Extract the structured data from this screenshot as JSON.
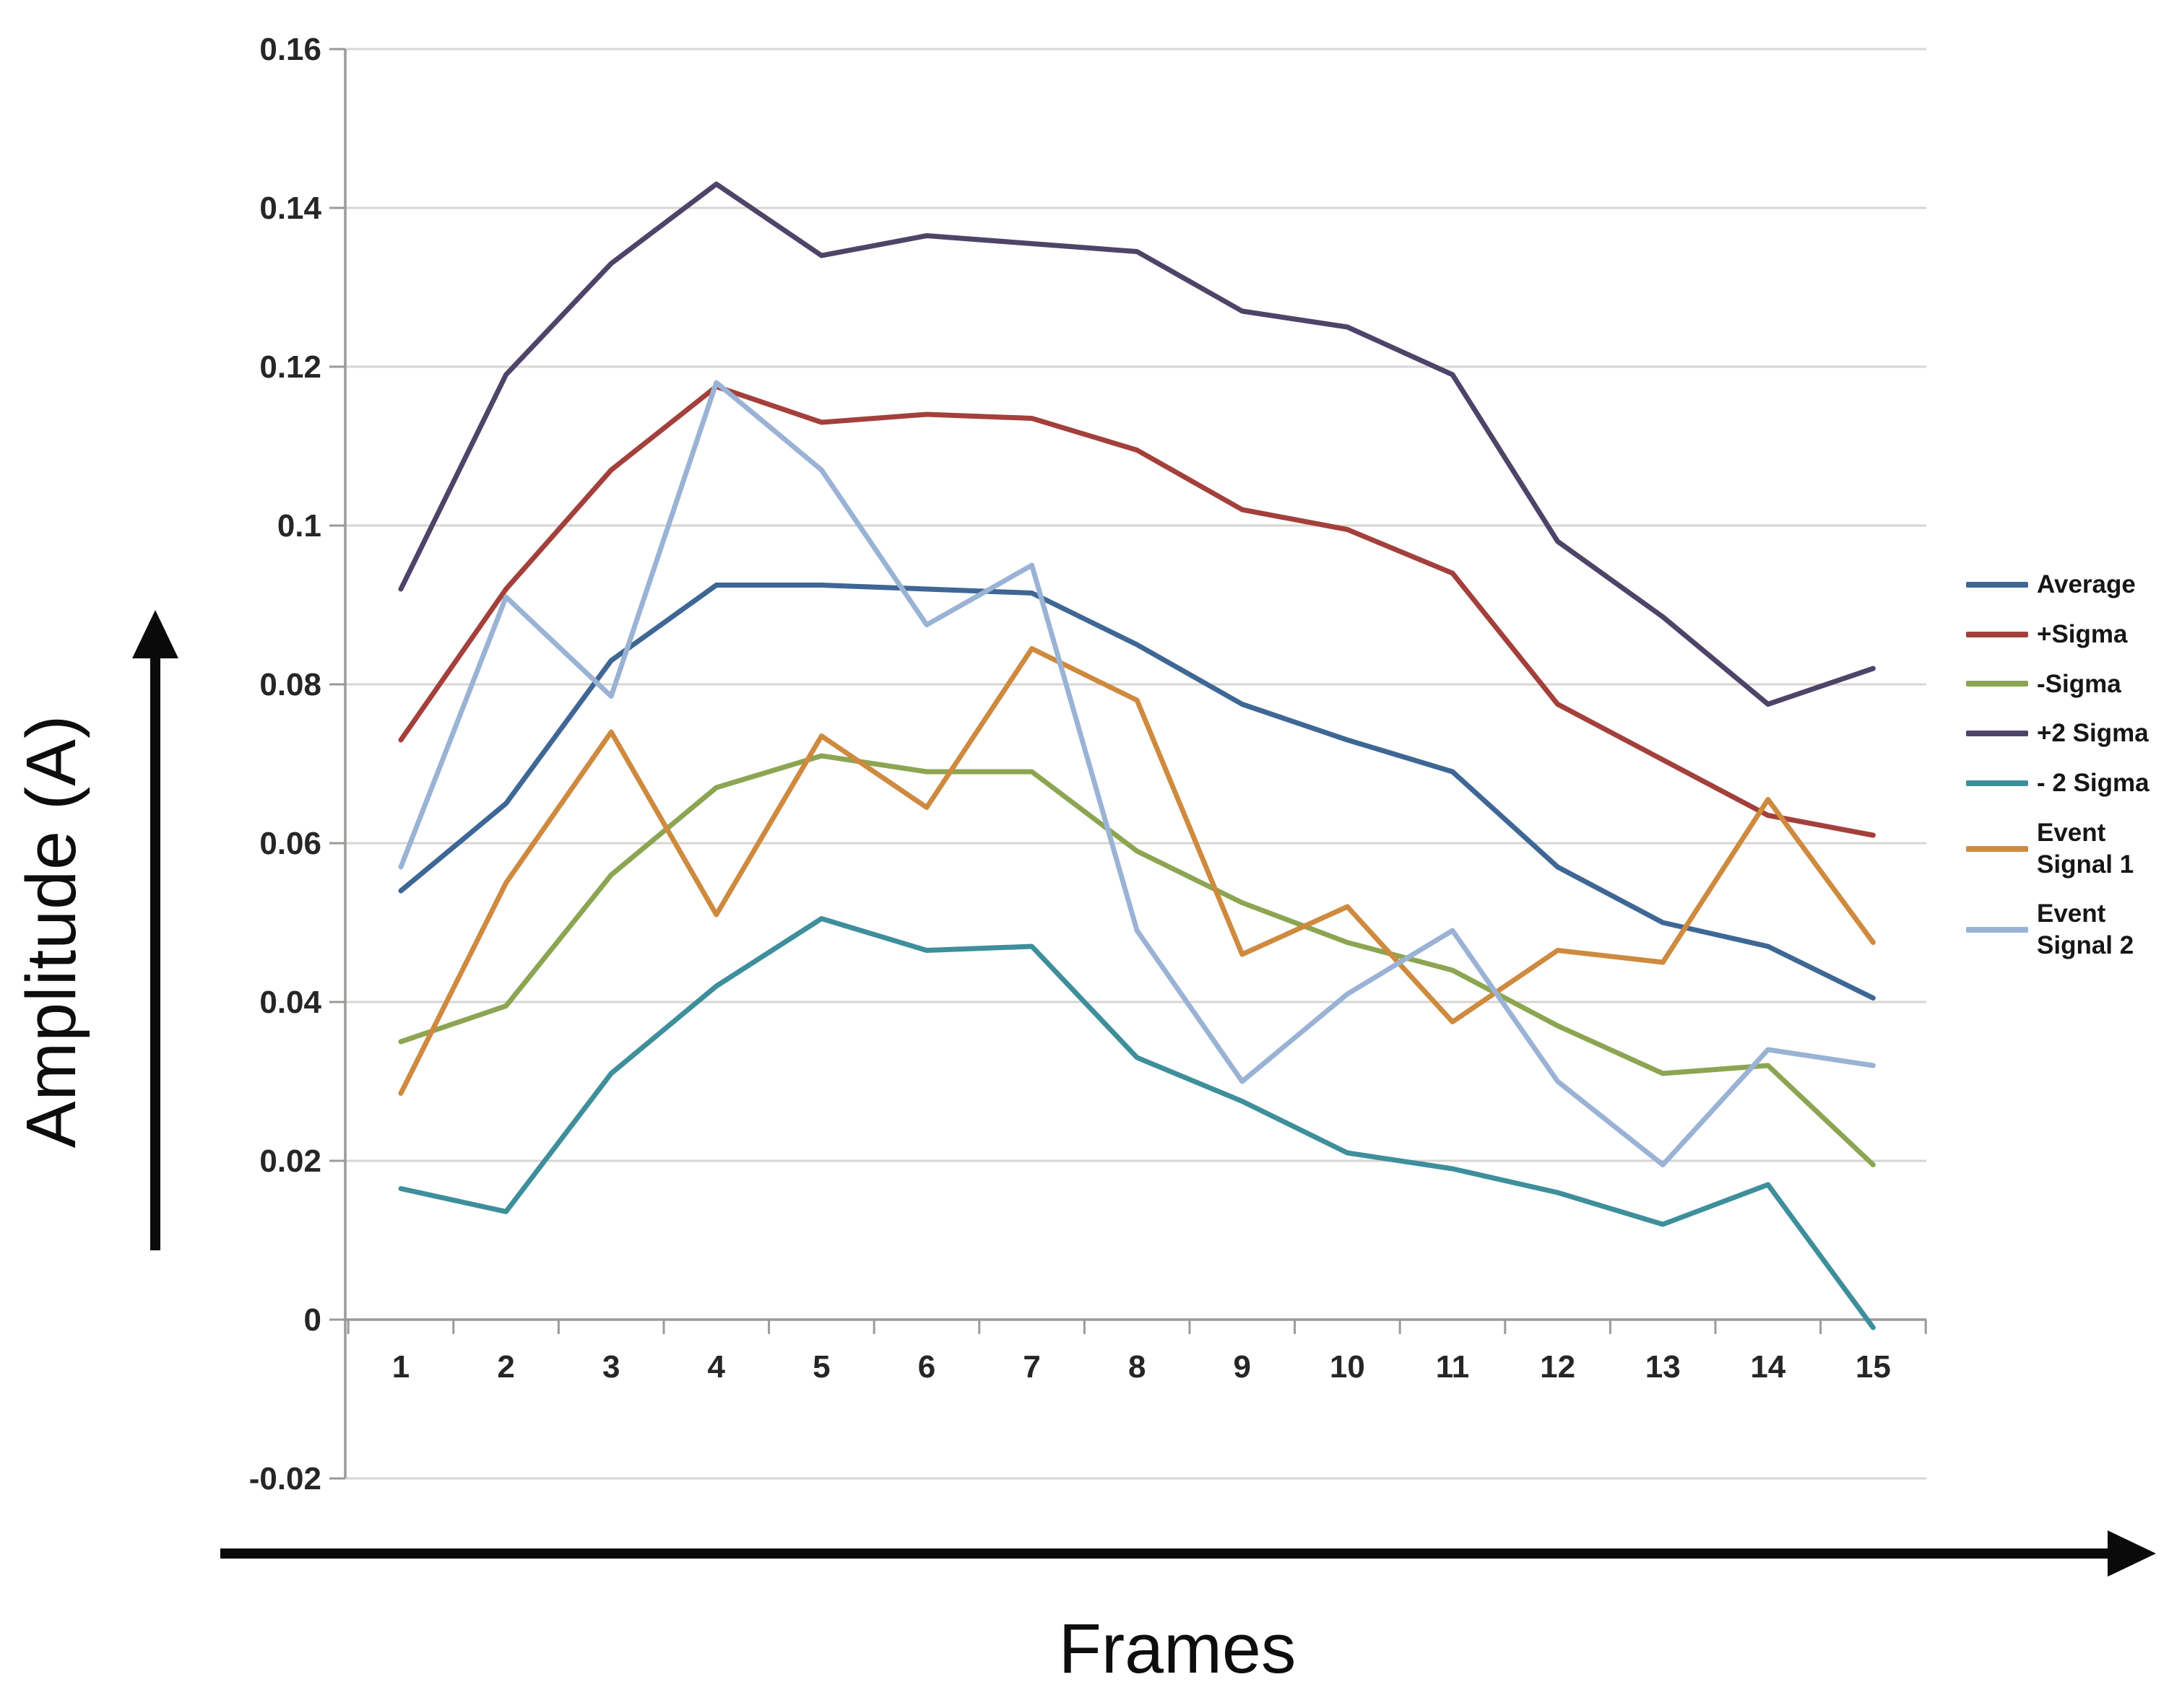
{
  "chart_data": {
    "type": "line",
    "title": "",
    "xlabel": "Frames",
    "ylabel": "Amplitude (A)",
    "x": [
      1,
      2,
      3,
      4,
      5,
      6,
      7,
      8,
      9,
      10,
      11,
      12,
      13,
      14,
      15
    ],
    "ylim": [
      -0.02,
      0.16
    ],
    "ytick_interval": 0.02,
    "ytick_labels": [
      "0.16",
      "0.14",
      "0.12",
      "0.1",
      "0.08",
      "0.06",
      "0.04",
      "0.02",
      "0",
      "-0.02"
    ],
    "grid": true,
    "legend_position": "right",
    "series": [
      {
        "name": "Average",
        "legend_lines": [
          "Average"
        ],
        "color": "#3F6795",
        "values": [
          0.054,
          0.065,
          0.083,
          0.0925,
          0.0925,
          0.092,
          0.0915,
          0.085,
          0.0775,
          0.073,
          0.069,
          0.057,
          0.05,
          0.047,
          0.0405
        ]
      },
      {
        "name": "+Sigma",
        "legend_lines": [
          "+Sigma"
        ],
        "color": "#A3403C",
        "values": [
          0.073,
          0.092,
          0.107,
          0.1175,
          0.113,
          0.114,
          0.1135,
          0.1095,
          0.102,
          0.0995,
          0.094,
          0.0775,
          0.0705,
          0.0635,
          0.061
        ]
      },
      {
        "name": "-Sigma",
        "legend_lines": [
          "-Sigma"
        ],
        "color": "#8CA552",
        "values": [
          0.035,
          0.0395,
          0.056,
          0.067,
          0.071,
          0.069,
          0.069,
          0.059,
          0.0525,
          0.0475,
          0.044,
          0.037,
          0.031,
          0.032,
          0.0195
        ]
      },
      {
        "name": "+2 Sigma",
        "legend_lines": [
          "+2 Sigma"
        ],
        "color": "#4E4468",
        "values": [
          0.092,
          0.119,
          0.133,
          0.143,
          0.134,
          0.1365,
          0.1355,
          0.1345,
          0.127,
          0.125,
          0.119,
          0.098,
          0.0885,
          0.0775,
          0.082
        ]
      },
      {
        "name": "- 2 Sigma",
        "legend_lines": [
          "- 2 Sigma"
        ],
        "color": "#3E8F9B",
        "values": [
          0.0165,
          0.0136,
          0.031,
          0.042,
          0.0505,
          0.0465,
          0.047,
          0.033,
          0.0275,
          0.021,
          0.019,
          0.016,
          0.012,
          0.017,
          -0.001
        ]
      },
      {
        "name": "Event Signal 1",
        "legend_lines": [
          "Event",
          "Signal 1"
        ],
        "color": "#CE8A3F",
        "values": [
          0.0285,
          0.055,
          0.074,
          0.051,
          0.0735,
          0.0645,
          0.0845,
          0.078,
          0.046,
          0.052,
          0.0375,
          0.0465,
          0.045,
          0.0655,
          0.0475
        ]
      },
      {
        "name": "Event Signal 2",
        "legend_lines": [
          "Event",
          "Signal 2"
        ],
        "color": "#9AB3D5",
        "values": [
          0.057,
          0.091,
          0.0785,
          0.118,
          0.107,
          0.0875,
          0.095,
          0.049,
          0.03,
          0.041,
          0.049,
          0.03,
          0.0195,
          0.034,
          0.032
        ]
      }
    ]
  },
  "colors": {
    "gridline": "#D8D5D2",
    "axis": "#9C9A98",
    "tick_label": "#262626",
    "arrow": "#0a0a0a"
  }
}
